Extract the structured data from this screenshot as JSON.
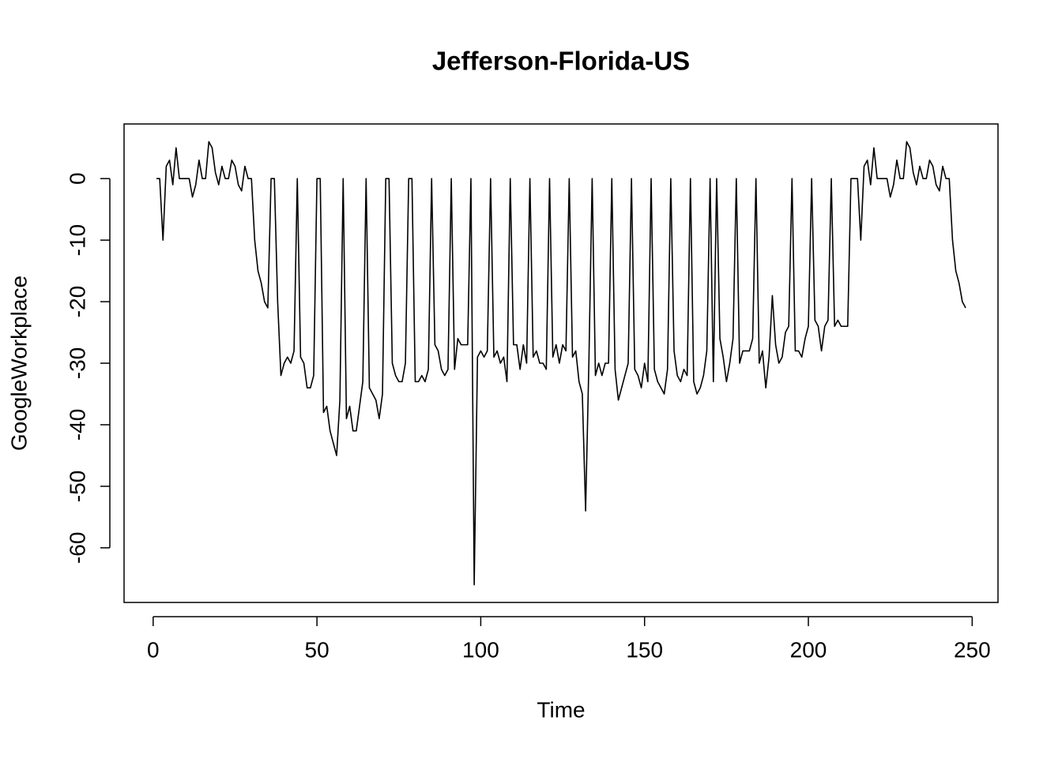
{
  "chart_data": {
    "type": "line",
    "title": "Jefferson-Florida-US",
    "x_label": "Time",
    "y_label": "GoogleWorkplace",
    "color": "#000000",
    "x": [
      1,
      2,
      3,
      4,
      5,
      6,
      7,
      8,
      9,
      10,
      11,
      12,
      13,
      14,
      15,
      16,
      17,
      18,
      19,
      20,
      21,
      22,
      23,
      24,
      25,
      26,
      27,
      28,
      29,
      30,
      31,
      32,
      33,
      34,
      35,
      36,
      37,
      38,
      39,
      40,
      41,
      42,
      43,
      44,
      45,
      46,
      47,
      48,
      49,
      50,
      51,
      52,
      53,
      54,
      55,
      56,
      57,
      58,
      59,
      60,
      61,
      62,
      63,
      64,
      65,
      66,
      67,
      68,
      69,
      70,
      71,
      72,
      73,
      74,
      75,
      76,
      77,
      78,
      79,
      80,
      81,
      82,
      83,
      84,
      85,
      86,
      87,
      88,
      89,
      90,
      91,
      92,
      93,
      94,
      95,
      96,
      97,
      98,
      99,
      100,
      101,
      102,
      103,
      104,
      105,
      106,
      107,
      108,
      109,
      110,
      111,
      112,
      113,
      114,
      115,
      116,
      117,
      118,
      119,
      120,
      121,
      122,
      123,
      124,
      125,
      126,
      127,
      128,
      129,
      130,
      131,
      132,
      133,
      134,
      135,
      136,
      137,
      138,
      139,
      140,
      141,
      142,
      143,
      144,
      145,
      146,
      147,
      148,
      149,
      150,
      151,
      152,
      153,
      154,
      155,
      156,
      157,
      158,
      159,
      160,
      161,
      162,
      163,
      164,
      165,
      166,
      167,
      168,
      169,
      170,
      171,
      172,
      173,
      174,
      175,
      176,
      177,
      178,
      179,
      180,
      181,
      182,
      183,
      184,
      185,
      186,
      187,
      188,
      189,
      190,
      191,
      192,
      193,
      194,
      195,
      196,
      197,
      198,
      199,
      200,
      201,
      202,
      203,
      204,
      205,
      206,
      207,
      208,
      209,
      210,
      211,
      212,
      213,
      214,
      215,
      216,
      217,
      218,
      219,
      220,
      221,
      222,
      223,
      224,
      225,
      226,
      227,
      228,
      229,
      230,
      231,
      232,
      233,
      234,
      235,
      236,
      237,
      238,
      239,
      240,
      241,
      242,
      243,
      244,
      245,
      246,
      247,
      248
    ],
    "values": [
      0,
      0,
      -10,
      2,
      3,
      -1,
      5,
      0,
      0,
      0,
      0,
      -3,
      -1,
      3,
      0,
      0,
      6,
      5,
      1,
      -1,
      2,
      0,
      0,
      3,
      2,
      -1,
      -2,
      2,
      0,
      0,
      -10,
      -15,
      -17,
      -20,
      -21,
      0,
      0,
      -20,
      -32,
      -30,
      -29,
      -30,
      -28,
      0,
      -29,
      -30,
      -34,
      -34,
      -32,
      0,
      0,
      -38,
      -37,
      -41,
      -43,
      -45,
      -36,
      0,
      -39,
      -37,
      -41,
      -41,
      -37,
      -33,
      0,
      -34,
      -35,
      -36,
      -39,
      -35,
      0,
      0,
      -30,
      -32,
      -33,
      -33,
      -30,
      0,
      0,
      -33,
      -33,
      -32,
      -33,
      -31,
      0,
      -27,
      -28,
      -31,
      -32,
      -31,
      0,
      -31,
      -26,
      -27,
      -27,
      -27,
      0,
      -66,
      -29,
      -28,
      -29,
      -28,
      0,
      -29,
      -28,
      -30,
      -29,
      -33,
      0,
      -27,
      -27,
      -31,
      -27,
      -30,
      0,
      -29,
      -28,
      -30,
      -30,
      -31,
      0,
      -29,
      -27,
      -30,
      -27,
      -28,
      0,
      -29,
      -28,
      -33,
      -35,
      -54,
      -30,
      0,
      -32,
      -30,
      -32,
      -30,
      -30,
      0,
      -31,
      -36,
      -34,
      -32,
      -30,
      0,
      -31,
      -32,
      -34,
      -30,
      -33,
      0,
      -31,
      -33,
      -34,
      -35,
      -31,
      0,
      -28,
      -32,
      -33,
      -31,
      -32,
      0,
      -33,
      -35,
      -34,
      -32,
      -28,
      0,
      -33,
      0,
      -26,
      -29,
      -33,
      -30,
      -26,
      0,
      -30,
      -28,
      -28,
      -28,
      -26,
      0,
      -30,
      -28,
      -34,
      -29,
      -19,
      -27,
      -30,
      -29,
      -25,
      -24,
      0,
      -28,
      -28,
      -29,
      -26,
      -24,
      0,
      -23,
      -24,
      -28,
      -24,
      -23,
      0,
      -24,
      -23,
      -24,
      -24,
      -24,
      0,
      0,
      0,
      -10,
      2,
      3,
      -1,
      5,
      0,
      0,
      0,
      0,
      -3,
      -1,
      3,
      0,
      0,
      6,
      5,
      1,
      -1,
      2,
      0,
      0,
      3,
      2,
      -1,
      -2,
      2,
      0,
      0,
      -10,
      -15,
      -17,
      -20,
      -21
    ],
    "xlim": [
      -8.88,
      257.88
    ],
    "ylim": [
      -68.88,
      8.88
    ],
    "xticks": [
      0,
      50,
      100,
      150,
      200,
      250
    ],
    "yticks": [
      -60,
      -50,
      -40,
      -30,
      -20,
      -10,
      0
    ]
  }
}
